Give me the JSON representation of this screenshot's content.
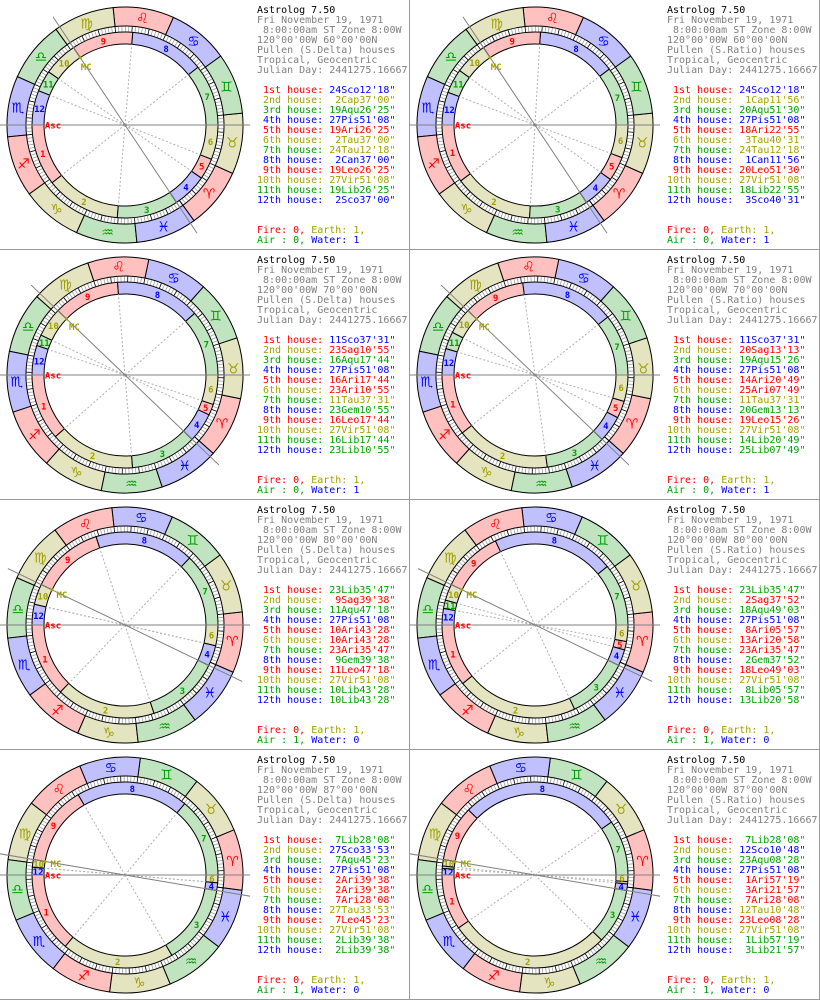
{
  "colors": {
    "fire_text": "#ff0000",
    "earth_text": "#a0a000",
    "air_text": "#00a000",
    "water_text": "#0000ff",
    "fire_fill": "#ffc0c0",
    "earth_fill": "#e4e4c0",
    "air_fill": "#c0e4c0",
    "water_fill": "#c0c0ff",
    "header_text": "#808080",
    "title_text": "#000000",
    "border": "#9a9a9a"
  },
  "signs": [
    "Ari",
    "Tau",
    "Gem",
    "Can",
    "Leo",
    "Vir",
    "Lib",
    "Sco",
    "Sag",
    "Cap",
    "Aqu",
    "Pis"
  ],
  "sign_icons": [
    "aries-icon",
    "taurus-icon",
    "gemini-icon",
    "cancer-icon",
    "leo-icon",
    "virgo-icon",
    "libra-icon",
    "scorpio-icon",
    "sagittarius-icon",
    "capricorn-icon",
    "aquarius-icon",
    "pisces-icon"
  ],
  "wheel_labels": {
    "asc": "Asc",
    "mc": "MC"
  },
  "element_labels": {
    "fire": "Fire: ",
    "earth": "Earth: ",
    "air": "Air : ",
    "water": "Water: "
  },
  "house_labels": [
    "1st house:",
    "2nd house:",
    "3rd house:",
    "4th house:",
    "5th house:",
    "6th house:",
    "7th house:",
    "8th house:",
    "9th house:",
    "10th house:",
    "11th house:",
    "12th house:"
  ],
  "panels": [
    {
      "title": "Astrolog 7.50",
      "date": "Fri November 19, 1971",
      "time": " 8:00:00am ST Zone 8:00W",
      "location": "120°00'00W 60°00'00N",
      "system": "Pullen (S.Delta) houses",
      "zodiac": "Tropical, Geocentric",
      "julian": "Julian Day: 2441275.16667",
      "houses": [
        "24Sco12'18\"",
        "2Cap37'00\"",
        "19Aqu26'25\"",
        "27Pis51'08\"",
        "19Ari26'25\"",
        "2Tau37'00\"",
        "24Tau12'18\"",
        "2Can37'00\"",
        "19Leo26'25\"",
        "27Vir51'08\"",
        "19Lib26'25\"",
        "2Sco37'00\""
      ],
      "elements": {
        "fire": "0",
        "earth": "1",
        "air": "0",
        "water": "1"
      }
    },
    {
      "title": "Astrolog 7.50",
      "date": "Fri November 19, 1971",
      "time": " 8:00:00am ST Zone 8:00W",
      "location": "120°00'00W 60°00'00N",
      "system": "Pullen (S.Ratio) houses",
      "zodiac": "Tropical, Geocentric",
      "julian": "Julian Day: 2441275.16667",
      "houses": [
        "24Sco12'18\"",
        "1Cap11'56\"",
        "20Aqu51'30\"",
        "27Pis51'08\"",
        "18Ari22'55\"",
        "3Tau40'31\"",
        "24Tau12'18\"",
        "1Can11'56\"",
        "20Leo51'30\"",
        "27Vir51'08\"",
        "18Lib22'55\"",
        "3Sco40'31\""
      ],
      "elements": {
        "fire": "0",
        "earth": "1",
        "air": "0",
        "water": "1"
      }
    },
    {
      "title": "Astrolog 7.50",
      "date": "Fri November 19, 1971",
      "time": " 8:00:00am ST Zone 8:00W",
      "location": "120°00'00W 70°00'00N",
      "system": "Pullen (S.Delta) houses",
      "zodiac": "Tropical, Geocentric",
      "julian": "Julian Day: 2441275.16667",
      "houses": [
        "11Sco37'31\"",
        "23Sag10'55\"",
        "16Aqu17'44\"",
        "27Pis51'08\"",
        "16Ari17'44\"",
        "23Ari10'55\"",
        "11Tau37'31\"",
        "23Gem10'55\"",
        "16Leo17'44\"",
        "27Vir51'08\"",
        "16Lib17'44\"",
        "23Lib10'55\""
      ],
      "elements": {
        "fire": "0",
        "earth": "1",
        "air": "0",
        "water": "1"
      }
    },
    {
      "title": "Astrolog 7.50",
      "date": "Fri November 19, 1971",
      "time": " 8:00:00am ST Zone 8:00W",
      "location": "120°00'00W 70°00'00N",
      "system": "Pullen (S.Ratio) houses",
      "zodiac": "Tropical, Geocentric",
      "julian": "Julian Day: 2441275.16667",
      "houses": [
        "11Sco37'31\"",
        "20Sag13'13\"",
        "19Aqu15'26\"",
        "27Pis51'08\"",
        "14Ari20'49\"",
        "25Ari07'49\"",
        "11Tau37'31\"",
        "20Gem13'13\"",
        "19Leo15'26\"",
        "27Vir51'08\"",
        "14Lib20'49\"",
        "25Lib07'49\""
      ],
      "elements": {
        "fire": "0",
        "earth": "1",
        "air": "0",
        "water": "1"
      }
    },
    {
      "title": "Astrolog 7.50",
      "date": "Fri November 19, 1971",
      "time": " 8:00:00am ST Zone 8:00W",
      "location": "120°00'00W 80°00'00N",
      "system": "Pullen (S.Delta) houses",
      "zodiac": "Tropical, Geocentric",
      "julian": "Julian Day: 2441275.16667",
      "houses": [
        "23Lib35'47\"",
        "9Sag39'38\"",
        "11Aqu47'18\"",
        "27Pis51'08\"",
        "10Ari43'28\"",
        "10Ari43'28\"",
        "23Ari35'47\"",
        "9Gem39'38\"",
        "11Leo47'18\"",
        "27Vir51'08\"",
        "10Lib43'28\"",
        "10Lib43'28\""
      ],
      "elements": {
        "fire": "0",
        "earth": "1",
        "air": "1",
        "water": "0"
      }
    },
    {
      "title": "Astrolog 7.50",
      "date": "Fri November 19, 1971",
      "time": " 8:00:00am ST Zone 8:00W",
      "location": "120°00'00W 80°00'00N",
      "system": "Pullen (S.Ratio) houses",
      "zodiac": "Tropical, Geocentric",
      "julian": "Julian Day: 2441275.16667",
      "houses": [
        "23Lib35'47\"",
        "2Sag37'52\"",
        "18Aqu49'03\"",
        "27Pis51'08\"",
        "8Ari05'57\"",
        "13Ari20'58\"",
        "23Ari35'47\"",
        "2Gem37'52\"",
        "18Leo49'03\"",
        "27Vir51'08\"",
        "8Lib05'57\"",
        "13Lib20'58\""
      ],
      "elements": {
        "fire": "0",
        "earth": "1",
        "air": "1",
        "water": "0"
      }
    },
    {
      "title": "Astrolog 7.50",
      "date": "Fri November 19, 1971",
      "time": " 8:00:00am ST Zone 8:00W",
      "location": "120°00'00W 87°00'00N",
      "system": "Pullen (S.Delta) houses",
      "zodiac": "Tropical, Geocentric",
      "julian": "Julian Day: 2441275.16667",
      "houses": [
        "7Lib28'08\"",
        "27Sco33'53\"",
        "7Aqu45'23\"",
        "27Pis51'08\"",
        "2Ari39'38\"",
        "2Ari39'38\"",
        "7Ari28'08\"",
        "27Tau33'53\"",
        "7Leo45'23\"",
        "27Vir51'08\"",
        "2Lib39'38\"",
        "2Lib39'38\""
      ],
      "elements": {
        "fire": "0",
        "earth": "1",
        "air": "1",
        "water": "0"
      }
    },
    {
      "title": "Astrolog 7.50",
      "date": "Fri November 19, 1971",
      "time": " 8:00:00am ST Zone 8:00W",
      "location": "120°00'00W 87°00'00N",
      "system": "Pullen (S.Ratio) houses",
      "zodiac": "Tropical, Geocentric",
      "julian": "Julian Day: 2441275.16667",
      "houses": [
        "7Lib28'08\"",
        "12Sco10'48\"",
        "23Aqu08'28\"",
        "27Pis51'08\"",
        "1Ari57'19\"",
        "3Ari21'57\"",
        "7Ari28'08\"",
        "12Tau10'48\"",
        "23Leo08'28\"",
        "27Vir51'08\"",
        "1Lib57'19\"",
        "3Lib21'57\""
      ],
      "elements": {
        "fire": "0",
        "earth": "1",
        "air": "1",
        "water": "0"
      }
    }
  ]
}
